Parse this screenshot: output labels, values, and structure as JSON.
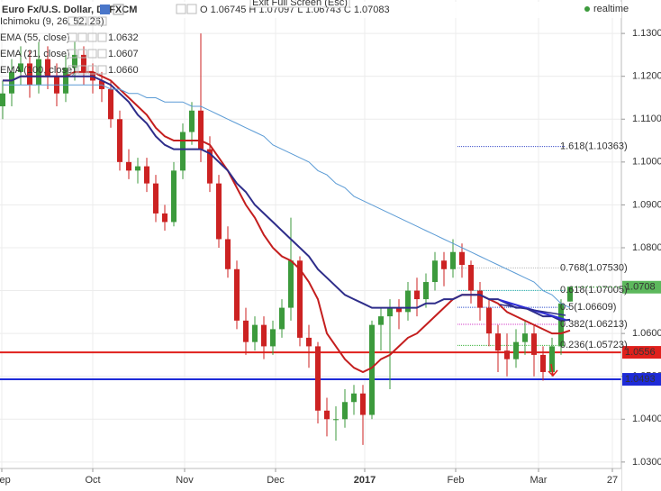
{
  "header": {
    "title": "Euro Fx/U.S. Dollar, D, FXCM",
    "ohlc": "O 1.06745 H 1.07097 L 1.06743 C 1.07083",
    "status": "realtime",
    "tooltip": "Exit Full Screen (Esc)"
  },
  "legend": [
    {
      "name": "Ichimoku (9, 26, 52, 26)",
      "value": ""
    },
    {
      "name": "EMA (55, close)",
      "value": "1.0632"
    },
    {
      "name": "EMA (21, close)",
      "value": "1.0607"
    },
    {
      "name": "EMA (100, close)",
      "value": "1.0660"
    }
  ],
  "chart_data": {
    "type": "candlestick",
    "ylim": [
      1.0285,
      1.1378
    ],
    "xlim": [
      -0.3,
      68.7
    ],
    "yticks": [
      {
        "value": 1.03,
        "label": "1.0300"
      },
      {
        "value": 1.04,
        "label": "1.0400"
      },
      {
        "value": 1.05,
        "label": "1.0500"
      },
      {
        "value": 1.06,
        "label": "1.0600"
      },
      {
        "value": 1.07,
        "label": "1.0700"
      },
      {
        "value": 1.08,
        "label": "1.0800"
      },
      {
        "value": 1.09,
        "label": "1.0900"
      },
      {
        "value": 1.1,
        "label": "1.1000"
      },
      {
        "value": 1.11,
        "label": "1.1100"
      },
      {
        "value": 1.12,
        "label": "1.1200"
      },
      {
        "value": 1.13,
        "label": "1.1300"
      }
    ],
    "xticks": [
      {
        "value": -0.1,
        "label": "Sep"
      },
      {
        "value": 10,
        "label": "Oct"
      },
      {
        "value": 20.2,
        "label": "Nov"
      },
      {
        "value": 30.3,
        "label": "Dec"
      },
      {
        "value": 40.2,
        "label": "2017"
      },
      {
        "value": 50.3,
        "label": "Feb"
      },
      {
        "value": 59.5,
        "label": "Mar"
      },
      {
        "value": 67.7,
        "label": "27"
      }
    ],
    "grid": true,
    "up_color": "#3c9a3c",
    "down_color": "#cc2222",
    "candles": [
      [
        1.113,
        1.119,
        1.11,
        1.116
      ],
      [
        1.116,
        1.124,
        1.113,
        1.121
      ],
      [
        1.121,
        1.127,
        1.118,
        1.123
      ],
      [
        1.123,
        1.126,
        1.115,
        1.118
      ],
      [
        1.118,
        1.128,
        1.116,
        1.124
      ],
      [
        1.124,
        1.127,
        1.117,
        1.12
      ],
      [
        1.12,
        1.123,
        1.113,
        1.116
      ],
      [
        1.116,
        1.125,
        1.114,
        1.122
      ],
      [
        1.122,
        1.128,
        1.119,
        1.125
      ],
      [
        1.125,
        1.127,
        1.118,
        1.121
      ],
      [
        1.121,
        1.123,
        1.116,
        1.119
      ],
      [
        1.119,
        1.121,
        1.114,
        1.117
      ],
      [
        1.117,
        1.119,
        1.108,
        1.11
      ],
      [
        1.11,
        1.112,
        1.098,
        1.1
      ],
      [
        1.1,
        1.103,
        1.096,
        1.098
      ],
      [
        1.098,
        1.101,
        1.095,
        1.099
      ],
      [
        1.099,
        1.101,
        1.093,
        1.095
      ],
      [
        1.095,
        1.097,
        1.086,
        1.088
      ],
      [
        1.088,
        1.09,
        1.084,
        1.086
      ],
      [
        1.086,
        1.1,
        1.085,
        1.098
      ],
      [
        1.098,
        1.109,
        1.096,
        1.107
      ],
      [
        1.107,
        1.114,
        1.104,
        1.112
      ],
      [
        1.112,
        1.13,
        1.1,
        1.103
      ],
      [
        1.103,
        1.106,
        1.093,
        1.095
      ],
      [
        1.095,
        1.097,
        1.08,
        1.082
      ],
      [
        1.082,
        1.085,
        1.073,
        1.075
      ],
      [
        1.075,
        1.077,
        1.061,
        1.063
      ],
      [
        1.063,
        1.066,
        1.055,
        1.058
      ],
      [
        1.058,
        1.064,
        1.056,
        1.062
      ],
      [
        1.062,
        1.064,
        1.054,
        1.057
      ],
      [
        1.057,
        1.063,
        1.055,
        1.061
      ],
      [
        1.061,
        1.068,
        1.059,
        1.066
      ],
      [
        1.066,
        1.087,
        1.063,
        1.077
      ],
      [
        1.077,
        1.078,
        1.057,
        1.059
      ],
      [
        1.059,
        1.062,
        1.052,
        1.057
      ],
      [
        1.057,
        1.058,
        1.039,
        1.042
      ],
      [
        1.042,
        1.045,
        1.036,
        1.04
      ],
      [
        1.04,
        1.043,
        1.035,
        1.04
      ],
      [
        1.04,
        1.047,
        1.038,
        1.044
      ],
      [
        1.044,
        1.048,
        1.041,
        1.046
      ],
      [
        1.046,
        1.048,
        1.034,
        1.041
      ],
      [
        1.041,
        1.063,
        1.04,
        1.062
      ],
      [
        1.062,
        1.066,
        1.056,
        1.064
      ],
      [
        1.064,
        1.068,
        1.047,
        1.066
      ],
      [
        1.066,
        1.068,
        1.061,
        1.065
      ],
      [
        1.065,
        1.072,
        1.063,
        1.07
      ],
      [
        1.07,
        1.073,
        1.064,
        1.068
      ],
      [
        1.068,
        1.074,
        1.066,
        1.072
      ],
      [
        1.072,
        1.079,
        1.07,
        1.077
      ],
      [
        1.077,
        1.079,
        1.071,
        1.075
      ],
      [
        1.075,
        1.082,
        1.073,
        1.079
      ],
      [
        1.079,
        1.081,
        1.073,
        1.076
      ],
      [
        1.076,
        1.077,
        1.067,
        1.07
      ],
      [
        1.07,
        1.072,
        1.063,
        1.066
      ],
      [
        1.066,
        1.068,
        1.057,
        1.06
      ],
      [
        1.06,
        1.062,
        1.051,
        1.056
      ],
      [
        1.056,
        1.06,
        1.05,
        1.054
      ],
      [
        1.054,
        1.061,
        1.052,
        1.058
      ],
      [
        1.058,
        1.063,
        1.055,
        1.06
      ],
      [
        1.06,
        1.062,
        1.05,
        1.055
      ],
      [
        1.055,
        1.057,
        1.049,
        1.051
      ],
      [
        1.051,
        1.059,
        1.05,
        1.057
      ],
      [
        1.057,
        1.068,
        1.055,
        1.067
      ],
      [
        1.06745,
        1.07097,
        1.06743,
        1.07083
      ]
    ],
    "series": [
      {
        "name": "EMA (21, close)",
        "color": "#c41e1e",
        "values": [
          1.119,
          1.119,
          1.12,
          1.12,
          1.12,
          1.12,
          1.12,
          1.12,
          1.121,
          1.121,
          1.121,
          1.12,
          1.119,
          1.117,
          1.115,
          1.113,
          1.111,
          1.108,
          1.106,
          1.105,
          1.105,
          1.105,
          1.105,
          1.104,
          1.101,
          1.098,
          1.094,
          1.09,
          1.087,
          1.083,
          1.08,
          1.078,
          1.077,
          1.075,
          1.072,
          1.068,
          1.06,
          1.057,
          1.054,
          1.052,
          1.051,
          1.052,
          1.054,
          1.055,
          1.057,
          1.059,
          1.06,
          1.062,
          1.064,
          1.066,
          1.068,
          1.069,
          1.069,
          1.069,
          1.068,
          1.067,
          1.065,
          1.064,
          1.063,
          1.062,
          1.061,
          1.06,
          1.06,
          1.0607
        ]
      },
      {
        "name": "EMA (55, close)",
        "color": "#2e2d8a",
        "values": [
          1.119,
          1.119,
          1.12,
          1.12,
          1.12,
          1.12,
          1.12,
          1.12,
          1.12,
          1.12,
          1.12,
          1.119,
          1.118,
          1.116,
          1.114,
          1.111,
          1.109,
          1.106,
          1.104,
          1.103,
          1.103,
          1.103,
          1.103,
          1.102,
          1.1,
          1.098,
          1.095,
          1.093,
          1.09,
          1.088,
          1.086,
          1.084,
          1.082,
          1.08,
          1.078,
          1.075,
          1.073,
          1.071,
          1.069,
          1.068,
          1.067,
          1.066,
          1.066,
          1.066,
          1.066,
          1.066,
          1.066,
          1.067,
          1.067,
          1.068,
          1.068,
          1.069,
          1.069,
          1.069,
          1.068,
          1.068,
          1.067,
          1.066,
          1.066,
          1.065,
          1.064,
          1.064,
          1.063,
          1.0632
        ]
      },
      {
        "name": "EMA (100, close)",
        "color": "#5b9bd5",
        "values": [
          1.118,
          1.118,
          1.118,
          1.118,
          1.118,
          1.118,
          1.118,
          1.118,
          1.118,
          1.118,
          1.118,
          1.118,
          1.117,
          1.117,
          1.116,
          1.116,
          1.115,
          1.115,
          1.114,
          1.114,
          1.114,
          1.113,
          1.113,
          1.112,
          1.111,
          1.11,
          1.109,
          1.108,
          1.107,
          1.106,
          1.104,
          1.103,
          1.102,
          1.101,
          1.1,
          1.098,
          1.097,
          1.095,
          1.094,
          1.092,
          1.091,
          1.09,
          1.089,
          1.088,
          1.087,
          1.086,
          1.085,
          1.084,
          1.083,
          1.082,
          1.081,
          1.08,
          1.079,
          1.078,
          1.077,
          1.076,
          1.075,
          1.074,
          1.073,
          1.072,
          1.07,
          1.069,
          1.067,
          1.066
        ]
      }
    ],
    "hlines": [
      {
        "value": 1.0556,
        "color": "#e0201c"
      },
      {
        "value": 1.0493,
        "color": "#1e2bd8"
      }
    ],
    "last_price": 1.0708,
    "fib_levels": [
      {
        "value": 1.10363,
        "label": "1.618(1.10363)",
        "color": "#3d4ec9"
      },
      {
        "value": 1.0753,
        "label": "0.768(1.07530)",
        "color": "#bbbbbb"
      },
      {
        "value": 1.07005,
        "label": "0.618(1.07005)",
        "color": "#22b5b5"
      },
      {
        "value": 1.06609,
        "label": "0.5(1.06609)",
        "color": "#3355cc"
      },
      {
        "value": 1.06213,
        "label": "0.382(1.06213)",
        "color": "#d33fc9"
      },
      {
        "value": 1.05723,
        "label": "0.236(1.05723)",
        "color": "#3bb33b"
      }
    ]
  }
}
